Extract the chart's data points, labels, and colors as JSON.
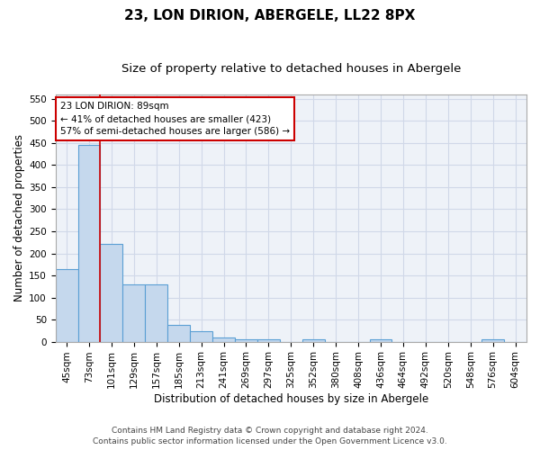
{
  "title1": "23, LON DIRION, ABERGELE, LL22 8PX",
  "title2": "Size of property relative to detached houses in Abergele",
  "xlabel": "Distribution of detached houses by size in Abergele",
  "ylabel": "Number of detached properties",
  "footer1": "Contains HM Land Registry data © Crown copyright and database right 2024.",
  "footer2": "Contains public sector information licensed under the Open Government Licence v3.0.",
  "categories": [
    "45sqm",
    "73sqm",
    "101sqm",
    "129sqm",
    "157sqm",
    "185sqm",
    "213sqm",
    "241sqm",
    "269sqm",
    "297sqm",
    "325sqm",
    "352sqm",
    "380sqm",
    "408sqm",
    "436sqm",
    "464sqm",
    "492sqm",
    "520sqm",
    "548sqm",
    "576sqm",
    "604sqm"
  ],
  "values": [
    165,
    445,
    222,
    130,
    130,
    37,
    24,
    10,
    6,
    5,
    0,
    5,
    0,
    0,
    5,
    0,
    0,
    0,
    0,
    5,
    0
  ],
  "bar_color": "#c5d8ed",
  "bar_edge_color": "#5a9fd4",
  "grid_color": "#d0d8e8",
  "background_color": "#eef2f8",
  "annotation_line1": "23 LON DIRION: 89sqm",
  "annotation_line2": "← 41% of detached houses are smaller (423)",
  "annotation_line3": "57% of semi-detached houses are larger (586) →",
  "red_line_x": 1.5,
  "ylim": [
    0,
    560
  ],
  "yticks": [
    0,
    50,
    100,
    150,
    200,
    250,
    300,
    350,
    400,
    450,
    500,
    550
  ],
  "annotation_box_color": "#ffffff",
  "annotation_box_edge": "#cc0000",
  "red_line_color": "#cc0000",
  "title1_fontsize": 11,
  "title2_fontsize": 9.5,
  "xlabel_fontsize": 8.5,
  "ylabel_fontsize": 8.5,
  "footer_fontsize": 6.5,
  "tick_fontsize": 7.5,
  "annotation_fontsize": 7.5
}
